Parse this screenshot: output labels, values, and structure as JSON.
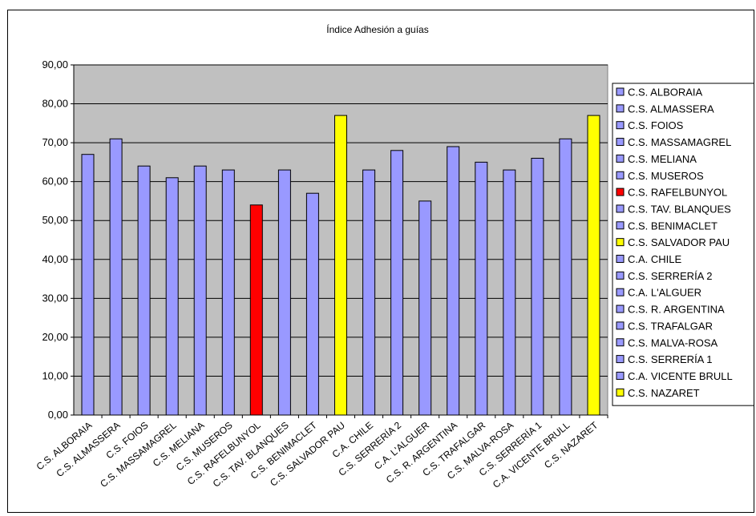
{
  "chart_data": {
    "type": "bar",
    "title": "Índice Adhesión a guías",
    "xlabel": "",
    "ylabel": "",
    "ylim": [
      0,
      90
    ],
    "yticks": [
      "0,00",
      "10,00",
      "20,00",
      "30,00",
      "40,00",
      "50,00",
      "60,00",
      "70,00",
      "80,00",
      "90,00"
    ],
    "grid": true,
    "legend_position": "right",
    "plot_background": "#c0c0c0",
    "categories": [
      "C.S. ALBORAIA",
      "C.S. ALMASSERA",
      "C.S. FOIOS",
      "C.S. MASSAMAGREL",
      "C.S. MELIANA",
      "C.S. MUSEROS",
      "C.S. RAFELBUNYOL",
      "C.S. TAV. BLANQUES",
      "C.S. BENIMACLET",
      "C.S. SALVADOR PAU",
      "C.A. CHILE",
      "C.S. SERRERÍA 2",
      "C.A. L'ALGUER",
      "C.S. R. ARGENTINA",
      "C.S. TRAFALGAR",
      "C.S. MALVA-ROSA",
      "C.S. SERRERÍA 1",
      "C.A. VICENTE BRULL",
      "C.S. NAZARET"
    ],
    "category_labels": [
      "C.S. ALBORAIA",
      "C.S. ALMASSERA",
      "C.S. FOIOS",
      "C.S. MASSAMAGREL",
      "C.S. MELIANA",
      "C.S. MUSEROS",
      "C.S. RAFELBUNYOL",
      "C.S. TAV. BLANQUES",
      "C.S. BENIMACLET",
      "C.S. SALVADOR PAU",
      "C.A. CHILE",
      "C.S. SERRERÍA 2",
      "C.A. L'ALGUER",
      "C.S. R. ARGENTINA",
      "C.S. TRAFALGAR",
      "C.S. MALVA-ROSA",
      "C.S. SERRERÍA 1",
      "C.A. VICENTE BRULL",
      "C.S. NAZARET"
    ],
    "legend_labels": [
      "C.S. ALBORAIA",
      "C.S. ALMASSERA",
      "C.S. FOIOS",
      "C.S. MASSAMAGREL",
      "C.S. MELIANA",
      "C.S. MUSEROS",
      "C.S. RAFELBUNYOL",
      "C.S. TAV. BLANQUES",
      "C.S. BENIMACLET",
      "C.S. SALVADOR PAU",
      "C.A. CHILE",
      "C.S. SERRERÍA 2",
      "C.A. L'ALGUER",
      "C.S. R. ARGENTINA",
      "C.S. TRAFALGAR",
      "C.S. MALVA-ROSA",
      "C.S. SERRERÍA 1",
      "C.A. VICENTE BRULL",
      "C.S. NAZARET"
    ],
    "values": [
      67,
      71,
      64,
      61,
      64,
      63,
      54,
      63,
      57,
      77,
      63,
      68,
      55,
      69,
      65,
      63,
      66,
      71,
      77
    ],
    "colors": [
      "#9999ff",
      "#9999ff",
      "#9999ff",
      "#9999ff",
      "#9999ff",
      "#9999ff",
      "#ff0000",
      "#9999ff",
      "#9999ff",
      "#ffff00",
      "#9999ff",
      "#9999ff",
      "#9999ff",
      "#9999ff",
      "#9999ff",
      "#9999ff",
      "#9999ff",
      "#9999ff",
      "#ffff00"
    ]
  }
}
